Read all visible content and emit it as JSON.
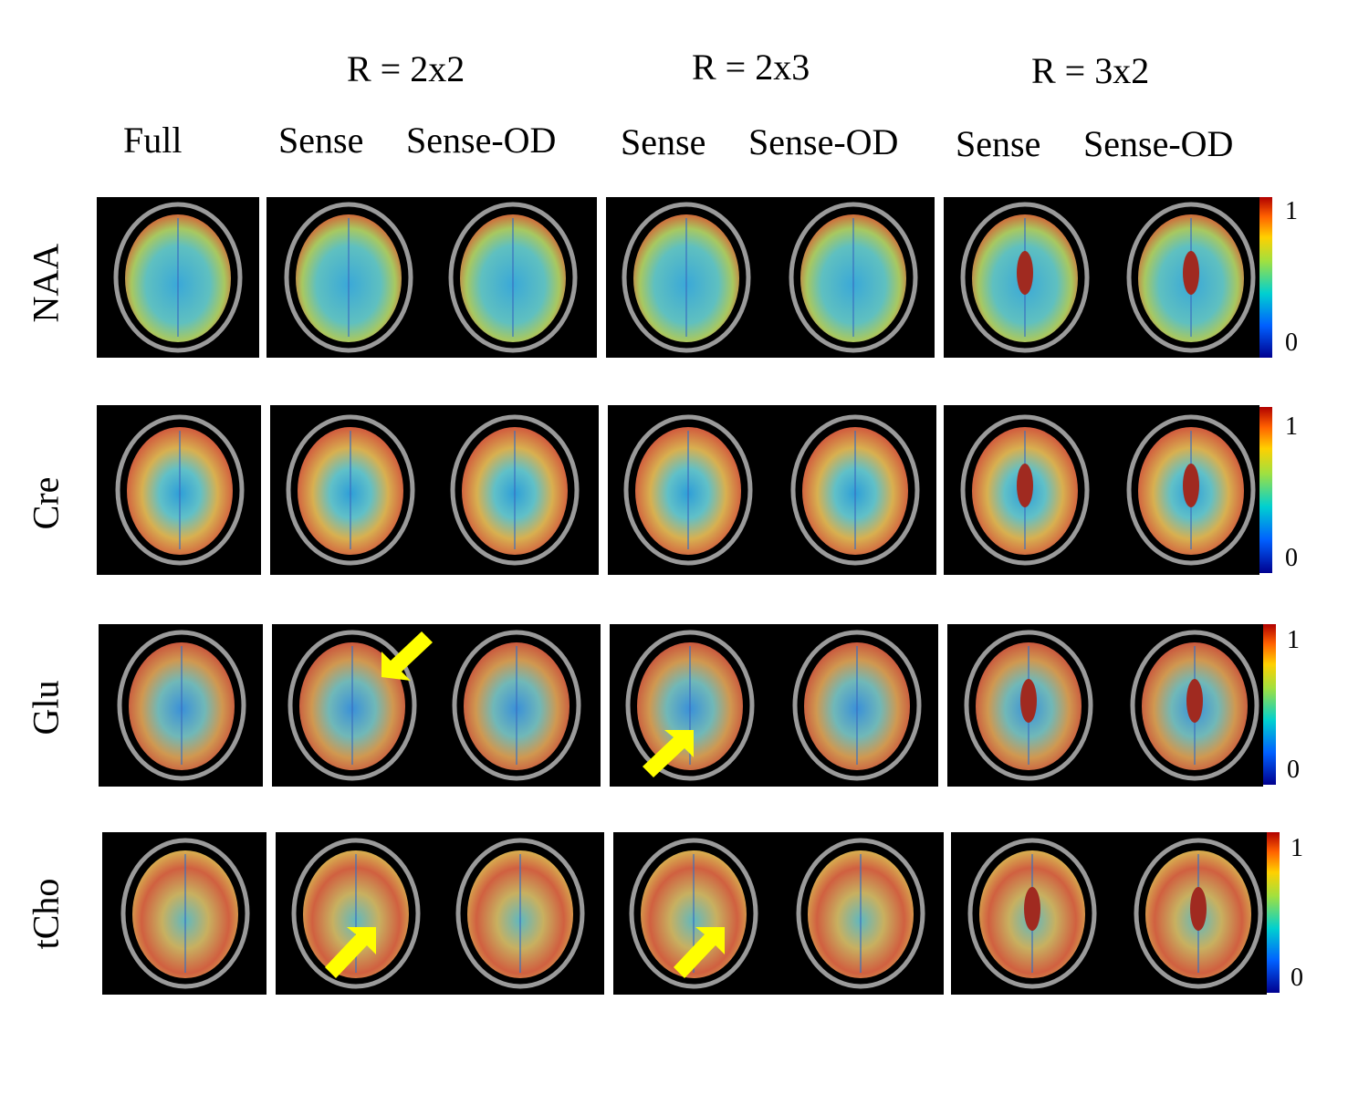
{
  "groups": {
    "r2x2": "R = 2x2",
    "r2x3": "R = 2x3",
    "r3x2": "R = 3x2"
  },
  "columns": {
    "full": "Full",
    "sense_1": "Sense",
    "senseod_1": "Sense-OD",
    "sense_2": "Sense",
    "senseod_2": "Sense-OD",
    "sense_3": "Sense",
    "senseod_3": "Sense-OD"
  },
  "rows": {
    "naa": "NAA",
    "cre": "Cre",
    "glu": "Glu",
    "tcho": "tCho"
  },
  "colorbar": {
    "max_label": "1",
    "min_label": "0",
    "colors": [
      "#00008f",
      "#0060ff",
      "#00d0d0",
      "#a0e040",
      "#ffd000",
      "#ff6000",
      "#b00000"
    ]
  },
  "arrow_color": "#ffff00",
  "image": {
    "description_icon": "brain-map-icon"
  }
}
